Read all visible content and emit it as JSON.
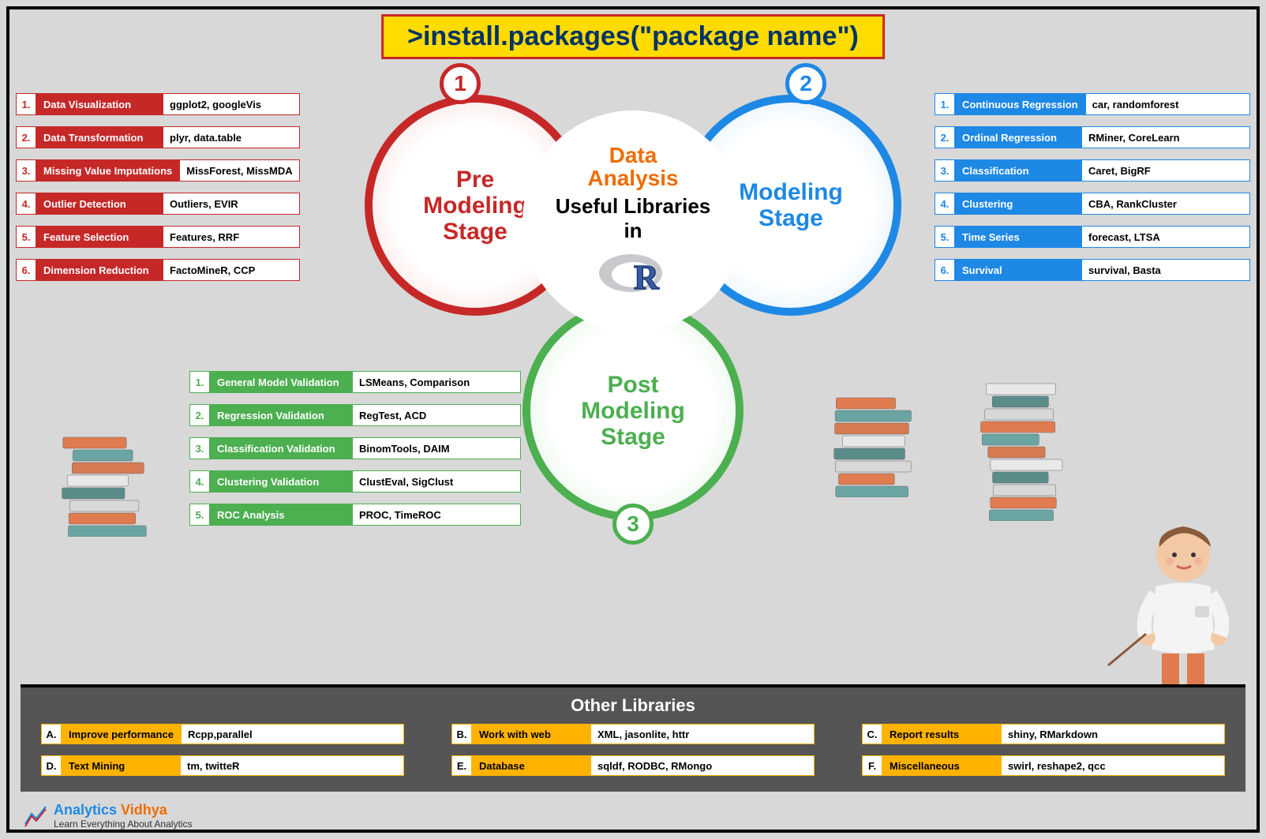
{
  "banner": ">install.packages(\"package name\")",
  "center": {
    "line1": "Data",
    "line2": "Analysis",
    "line3": "Useful Libraries",
    "line4": "in"
  },
  "circles": {
    "red": {
      "num": "1",
      "line1": "Pre",
      "line2": "Modeling",
      "line3": "Stage",
      "color": "#c62828"
    },
    "blue": {
      "num": "2",
      "line1": "Modeling",
      "line2": "Stage",
      "color": "#1e88e5"
    },
    "green": {
      "num": "3",
      "line1": "Post",
      "line2": "Modeling",
      "line3": "Stage",
      "color": "#4caf50"
    }
  },
  "red_items": [
    {
      "n": "1.",
      "label": "Data Visualization",
      "val": "ggplot2, googleVis"
    },
    {
      "n": "2.",
      "label": "Data Transformation",
      "val": "plyr, data.table"
    },
    {
      "n": "3.",
      "label": "Missing Value Imputations",
      "val": "MissForest, MissMDA"
    },
    {
      "n": "4.",
      "label": "Outlier Detection",
      "val": "Outliers, EVIR"
    },
    {
      "n": "5.",
      "label": "Feature Selection",
      "val": "Features, RRF"
    },
    {
      "n": "6.",
      "label": "Dimension Reduction",
      "val": "FactoMineR, CCP"
    }
  ],
  "blue_items": [
    {
      "n": "1.",
      "label": "Continuous Regression",
      "val": "car, randomforest"
    },
    {
      "n": "2.",
      "label": "Ordinal Regression",
      "val": "RMiner, CoreLearn"
    },
    {
      "n": "3.",
      "label": "Classification",
      "val": "Caret, BigRF"
    },
    {
      "n": "4.",
      "label": "Clustering",
      "val": "CBA, RankCluster"
    },
    {
      "n": "5.",
      "label": "Time Series",
      "val": "forecast, LTSA"
    },
    {
      "n": "6.",
      "label": "Survival",
      "val": "survival, Basta"
    }
  ],
  "green_items": [
    {
      "n": "1.",
      "label": "General Model Validation",
      "val": "LSMeans, Comparison"
    },
    {
      "n": "2.",
      "label": "Regression Validation",
      "val": "RegTest, ACD"
    },
    {
      "n": "3.",
      "label": "Classification Validation",
      "val": "BinomTools, DAIM"
    },
    {
      "n": "4.",
      "label": "Clustering Validation",
      "val": "ClustEval, SigClust"
    },
    {
      "n": "5.",
      "label": "ROC Analysis",
      "val": "PROC, TimeROC"
    }
  ],
  "other": {
    "title": "Other Libraries",
    "items": [
      {
        "n": "A.",
        "label": "Improve performance",
        "val": "Rcpp,parallel"
      },
      {
        "n": "B.",
        "label": "Work with web",
        "val": "XML, jasonlite, httr"
      },
      {
        "n": "C.",
        "label": "Report results",
        "val": "shiny, RMarkdown"
      },
      {
        "n": "D.",
        "label": "Text Mining",
        "val": "tm, twitteR"
      },
      {
        "n": "E.",
        "label": "Database",
        "val": "sqldf, RODBC, RMongo"
      },
      {
        "n": "F.",
        "label": "Miscellaneous",
        "val": "swirl, reshape2, qcc"
      }
    ]
  },
  "footer": {
    "brand1": "Analytics",
    "brand2": " Vidhya",
    "tagline": "Learn Everything About Analytics"
  },
  "style": {
    "bg": "#d8d8d8",
    "banner_bg": "#ffdb00",
    "banner_border": "#c62828",
    "banner_text": "#003366",
    "other_bg": "#555555",
    "other_accent": "#ffb300",
    "book_colors": [
      "#6aa5a3",
      "#e07b4f",
      "#d8d8d8",
      "#5a8c8a",
      "#e8e8e8",
      "#d67a52"
    ]
  }
}
